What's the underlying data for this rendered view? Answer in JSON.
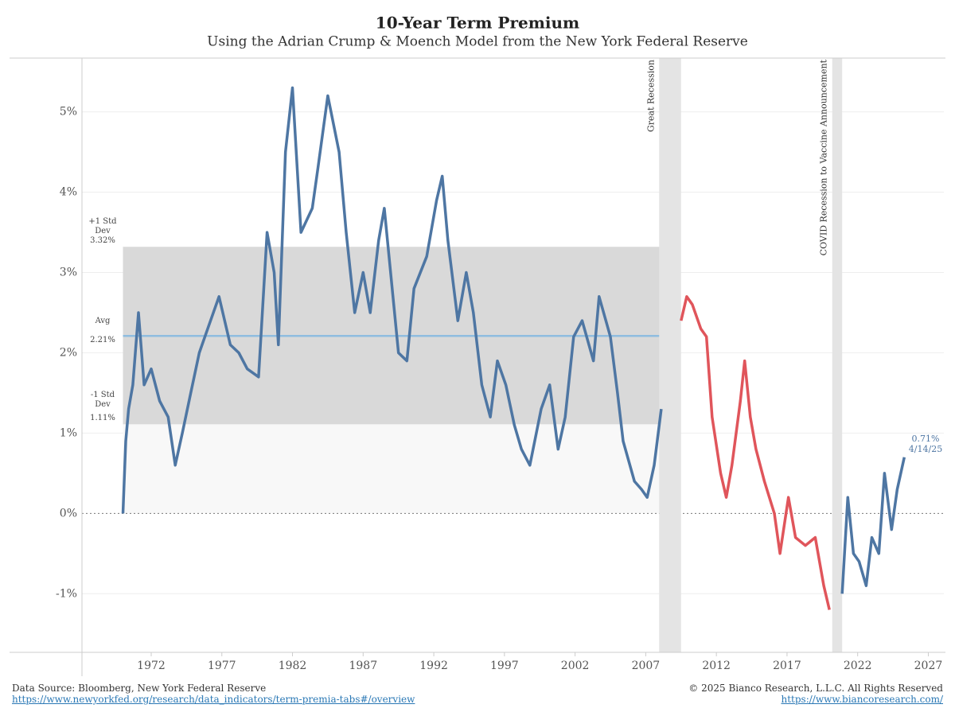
{
  "chart_data": {
    "type": "line",
    "title": "10-Year Term Premium",
    "subtitle": "Using the Adrian Crump & Moench Model from the New York Federal Reserve",
    "xlim": [
      1967.1,
      2028.1
    ],
    "xticks": [
      1972,
      1977,
      1982,
      1987,
      1992,
      1997,
      2002,
      2007,
      2012,
      2017,
      2022,
      2027
    ],
    "ylim": [
      -1.73,
      5.67
    ],
    "yticks": [
      {
        "value": -1,
        "label": "-1%"
      },
      {
        "value": 0,
        "label": "0%"
      },
      {
        "value": 1,
        "label": "1%"
      },
      {
        "value": 2,
        "label": "2%"
      },
      {
        "value": 3,
        "label": "3%"
      },
      {
        "value": 4,
        "label": "4%"
      },
      {
        "value": 5,
        "label": "5%"
      }
    ],
    "grid": true,
    "series": [
      {
        "color": "#4e76a3",
        "x": [
          1970.0,
          1970.2,
          1970.4,
          1970.7,
          1971.1,
          1971.5,
          1972.0,
          1972.6,
          1973.2,
          1973.7,
          1974.2,
          1974.8,
          1975.4,
          1976.0,
          1976.8,
          1977.6,
          1978.2,
          1978.8,
          1979.6,
          1980.2,
          1980.7,
          1981.0,
          1981.5,
          1982.0,
          1982.6,
          1983.4,
          1983.8,
          1984.5,
          1985.3,
          1985.8,
          1986.4,
          1987.0,
          1987.5,
          1988.1,
          1988.5,
          1989.0,
          1989.5,
          1990.1,
          1990.6,
          1991.5,
          1992.2,
          1992.6,
          1993.0,
          1993.7,
          1994.3,
          1994.8,
          1995.4,
          1996.0,
          1996.5,
          1997.1,
          1997.7,
          1998.2,
          1998.8,
          1999.6,
          2000.2,
          2000.8,
          2001.3,
          2001.9,
          2002.5,
          2003.3,
          2003.7,
          2004.5,
          2005.0,
          2005.4,
          2006.2,
          2006.7,
          2007.1,
          2007.6,
          2008.1
        ],
        "values": [
          0.0,
          0.9,
          1.3,
          1.6,
          2.5,
          1.6,
          1.8,
          1.4,
          1.2,
          0.6,
          1.0,
          1.5,
          2.0,
          2.3,
          2.7,
          2.1,
          2.0,
          1.8,
          1.7,
          3.5,
          3.0,
          2.1,
          4.5,
          5.3,
          3.5,
          3.8,
          4.3,
          5.2,
          4.5,
          3.5,
          2.5,
          3.0,
          2.5,
          3.4,
          3.8,
          2.9,
          2.0,
          1.9,
          2.8,
          3.2,
          3.9,
          4.2,
          3.4,
          2.4,
          3.0,
          2.5,
          1.6,
          1.2,
          1.9,
          1.6,
          1.1,
          0.8,
          0.6,
          1.3,
          1.6,
          0.8,
          1.2,
          2.2,
          2.4,
          1.9,
          2.7,
          2.2,
          1.5,
          0.9,
          0.4,
          0.3,
          0.2,
          0.6,
          1.3
        ]
      },
      {
        "color": "#e0555b",
        "x": [
          2009.5,
          2009.9,
          2010.3,
          2010.9,
          2011.3,
          2011.7,
          2012.3,
          2012.7,
          2013.1,
          2013.7,
          2014.0,
          2014.4,
          2014.8,
          2015.4,
          2016.1,
          2016.5,
          2017.1,
          2017.6,
          2018.3,
          2019.0,
          2019.6,
          2020.0
        ],
        "values": [
          2.4,
          2.7,
          2.6,
          2.3,
          2.2,
          1.2,
          0.5,
          0.2,
          0.6,
          1.4,
          1.9,
          1.2,
          0.8,
          0.4,
          0.0,
          -0.5,
          0.2,
          -0.3,
          -0.4,
          -0.3,
          -0.9,
          -1.2
        ]
      },
      {
        "color": "#4e76a3",
        "x": [
          2020.9,
          2021.3,
          2021.7,
          2022.1,
          2022.6,
          2023.0,
          2023.5,
          2023.9,
          2024.4,
          2024.8,
          2025.3
        ],
        "values": [
          -1.0,
          0.2,
          -0.5,
          -0.6,
          -0.9,
          -0.3,
          -0.5,
          0.5,
          -0.2,
          0.3,
          0.7
        ]
      }
    ],
    "stats": [
      {
        "label": "+1 Std Dev",
        "value": 3.32,
        "value_label": "3.32%"
      },
      {
        "label": "Avg",
        "value": 2.21,
        "value_label": "2.21%"
      },
      {
        "label": "-1 Std Dev",
        "value": 1.11,
        "value_label": "1.11%"
      }
    ],
    "stats_period": [
      1970.0,
      2008.1
    ],
    "recessions": [
      {
        "label": "Great Recession",
        "start": 2007.95,
        "end": 2009.5
      },
      {
        "label": "COVID Recession to Vaccine Announcement",
        "start": 2020.2,
        "end": 2020.9
      }
    ],
    "end_label": {
      "value": 0.71,
      "value_label": "0.71%",
      "date": "4/14/25"
    },
    "source": "Data Source: Bloomberg, New York Federal Reserve",
    "source_url": "https://www.newyorkfed.org/research/data_indicators/term-premia-tabs#/overview",
    "copyright": "© 2025 Bianco Research, L.L.C. All Rights Reserved",
    "copyright_url": "https://www.biancoresearch.com/"
  }
}
